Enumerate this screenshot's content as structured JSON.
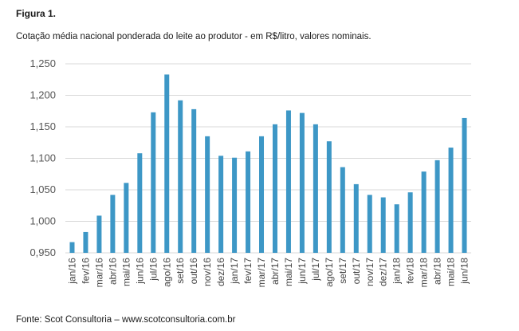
{
  "figure": {
    "label": "Figura 1.",
    "subtitle": "Cotação média nacional ponderada do leite ao produtor - em R$/litro, valores nominais.",
    "source": "Fonte: Scot Consultoria – www.scotconsultoria.com.br"
  },
  "chart_data": {
    "type": "bar",
    "title": "Cotação média nacional ponderada do leite ao produtor - em R$/litro, valores nominais.",
    "xlabel": "",
    "ylabel": "",
    "ylim": [
      0.95,
      1.25
    ],
    "yticks": [
      0.95,
      1.0,
      1.05,
      1.1,
      1.15,
      1.2,
      1.25
    ],
    "ytick_labels": [
      "0,950",
      "1,000",
      "1,050",
      "1,100",
      "1,150",
      "1,200",
      "1,250"
    ],
    "grid": true,
    "bar_color": "#3d97c6",
    "grid_color": "#d9d9d9",
    "categories": [
      "jan/16",
      "fev/16",
      "mar/16",
      "abr/16",
      "mai/16",
      "jun/16",
      "jul/16",
      "ago/16",
      "set/16",
      "out/16",
      "nov/16",
      "dez/16",
      "jan/17",
      "fev/17",
      "mar/17",
      "abr/17",
      "mai/17",
      "jun/17",
      "jul/17",
      "ago/17",
      "set/17",
      "out/17",
      "nov/17",
      "dez/17",
      "jan/18",
      "fev/18",
      "mar/18",
      "abr/18",
      "mai/18",
      "jun/18"
    ],
    "values": [
      0.967,
      0.983,
      1.009,
      1.042,
      1.061,
      1.108,
      1.173,
      1.233,
      1.192,
      1.178,
      1.135,
      1.104,
      1.101,
      1.111,
      1.135,
      1.154,
      1.176,
      1.172,
      1.154,
      1.127,
      1.086,
      1.059,
      1.042,
      1.038,
      1.027,
      1.046,
      1.079,
      1.097,
      1.117,
      1.164
    ]
  }
}
